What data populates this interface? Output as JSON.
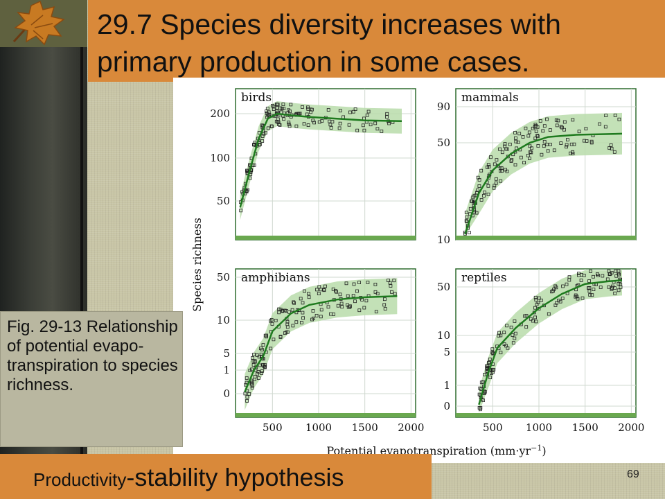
{
  "slide": {
    "title": "29.7 Species diversity increases with primary production in some cases.",
    "caption": "Fig. 29-13 Relationship of potential evapo-transpiration to species richness.",
    "footer_small": "Productivity",
    "footer_big": "-stability hypothesis",
    "slide_number": "69",
    "accent_color": "#d9893a",
    "icon": "autumn-leaf-icon"
  },
  "chart_data": [
    {
      "type": "scatter",
      "title": "birds",
      "x_ticks": [
        "500",
        "1000",
        "1500",
        "2000"
      ],
      "y_ticks": [
        "50",
        "100",
        "200"
      ],
      "y_scale": "log",
      "trend": [
        [
          150,
          45
        ],
        [
          250,
          80
        ],
        [
          350,
          135
        ],
        [
          450,
          185
        ],
        [
          550,
          200
        ],
        [
          700,
          195
        ],
        [
          900,
          190
        ],
        [
          1200,
          185
        ],
        [
          1500,
          180
        ],
        [
          1900,
          178
        ]
      ]
    },
    {
      "type": "scatter",
      "title": "mammals",
      "x_ticks": [
        "500",
        "1000",
        "1500",
        "2000"
      ],
      "y_ticks": [
        "10",
        "50",
        "90"
      ],
      "y_scale": "log",
      "trend": [
        [
          200,
          10
        ],
        [
          350,
          22
        ],
        [
          500,
          32
        ],
        [
          700,
          42
        ],
        [
          900,
          50
        ],
        [
          1100,
          55
        ],
        [
          1400,
          57
        ],
        [
          1900,
          58
        ]
      ]
    },
    {
      "type": "scatter",
      "title": "amphibians",
      "x_ticks": [
        "500",
        "1000",
        "1500",
        "2000"
      ],
      "y_ticks": [
        "0",
        "1",
        "5",
        "10",
        "50"
      ],
      "y_scale": "log",
      "trend": [
        [
          200,
          0
        ],
        [
          300,
          1
        ],
        [
          400,
          4
        ],
        [
          500,
          8
        ],
        [
          700,
          13
        ],
        [
          900,
          18
        ],
        [
          1200,
          22
        ],
        [
          1500,
          24
        ],
        [
          1850,
          25
        ]
      ]
    },
    {
      "type": "scatter",
      "title": "reptiles",
      "x_ticks": [
        "500",
        "1000",
        "1500",
        "2000"
      ],
      "y_ticks": [
        "0",
        "1",
        "5",
        "10",
        "50"
      ],
      "y_scale": "log",
      "trend": [
        [
          350,
          0
        ],
        [
          450,
          2
        ],
        [
          550,
          6
        ],
        [
          750,
          13
        ],
        [
          1000,
          25
        ],
        [
          1250,
          40
        ],
        [
          1500,
          55
        ],
        [
          1750,
          60
        ],
        [
          1900,
          62
        ]
      ]
    }
  ],
  "axes": {
    "ylabel": "Species richness",
    "xlabel": "Potential evapotranspiration (mm·yr",
    "xlabel_sup": "−1",
    "xlabel_end": ")"
  }
}
